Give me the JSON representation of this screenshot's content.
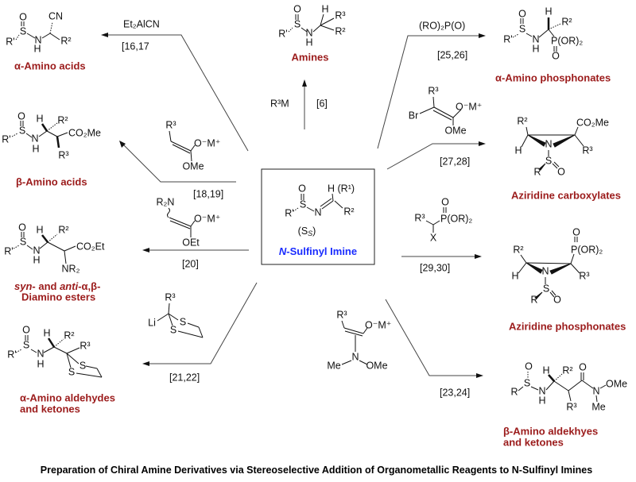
{
  "title": "Preparation of Chiral Amine Derivatives via Stereoselective Addition of Organometallic Reagents to N-Sulfinyl Imines",
  "colors": {
    "product_label": "#9b1b1b",
    "imine_label": "#1a2cff",
    "text": "#111111"
  },
  "center": {
    "label_italic": "N",
    "label_rest": "-Sulfinyl Imine",
    "config": "(S",
    "config_sub": "S",
    "config_close": ")",
    "atoms": [
      "O",
      "S",
      "R'",
      "N",
      "H (R¹)",
      "R²"
    ]
  },
  "reactions": [
    {
      "reagent": "Et₂AlCN",
      "ref": "[16,17",
      "product": "α-Amino acids",
      "atoms": [
        "O",
        "S",
        "R'",
        "N",
        "H",
        "CN",
        "R²"
      ]
    },
    {
      "reagent": "R³M",
      "ref": "[6]",
      "product": "Amines",
      "atoms": [
        "O",
        "S",
        "R'",
        "N",
        "H",
        "H",
        "R³",
        "R²"
      ]
    },
    {
      "reagent_atoms": [
        "R³",
        "O⁻M⁺",
        "OMe"
      ],
      "ref": "[18,19]",
      "product": "β-Amino acids",
      "atoms": [
        "O",
        "S",
        "R'",
        "N",
        "H",
        "H",
        "R²",
        "CO₂Me",
        "R³"
      ]
    },
    {
      "reagent_atoms": [
        "R₂N",
        "O⁻M⁺",
        "OEt"
      ],
      "ref": "[20]",
      "product_parts": [
        "syn",
        "- and ",
        "anti",
        "-α,β-"
      ],
      "product_line2": "Diamino esters",
      "atoms": [
        "O",
        "S",
        "R'",
        "N",
        "H",
        "H",
        "R²",
        "CO₂Et",
        "NR₂"
      ]
    },
    {
      "reagent_atoms": [
        "R³",
        "Li",
        "S",
        "S"
      ],
      "ref": "[21,22]",
      "product": "α-Amino aldehydes",
      "product_line2": "and ketones",
      "atoms": [
        "O",
        "S",
        "R'",
        "N",
        "H",
        "H",
        "R²",
        "R³",
        "S",
        "S"
      ]
    },
    {
      "reagent": "(RO)₂P(O)",
      "ref": "[25,26]",
      "product": "α-Amino phosphonates",
      "atoms": [
        "O",
        "S",
        "R'",
        "N",
        "H",
        "H",
        "R²",
        "P(OR)₂",
        "O"
      ]
    },
    {
      "reagent_atoms": [
        "R³",
        "Br",
        "O⁻M⁺",
        "OMe"
      ],
      "ref": "[27,28]",
      "product": "Aziridine carboxylates",
      "atoms": [
        "R²",
        "H",
        "N",
        "CO₂Me",
        "R³",
        "S",
        "R",
        "O"
      ]
    },
    {
      "reagent_atoms": [
        "O",
        "R³",
        "P(OR)₂",
        "X"
      ],
      "ref": "[29,30]",
      "product": "Aziridine phosphonates",
      "atoms": [
        "O",
        "P(OR)₂",
        "R²",
        "H",
        "N",
        "R³",
        "S",
        "R",
        "O"
      ]
    },
    {
      "reagent_atoms": [
        "R³",
        "O⁻M⁺",
        "N",
        "Me",
        "OMe"
      ],
      "ref": "[23,24]",
      "product": "β-Amino aldekhyes",
      "product_line2": "and ketones",
      "atoms": [
        "O",
        "S",
        "R",
        "N",
        "H",
        "H",
        "R²",
        "O",
        "N",
        "OMe",
        "R³",
        "Me"
      ]
    }
  ]
}
